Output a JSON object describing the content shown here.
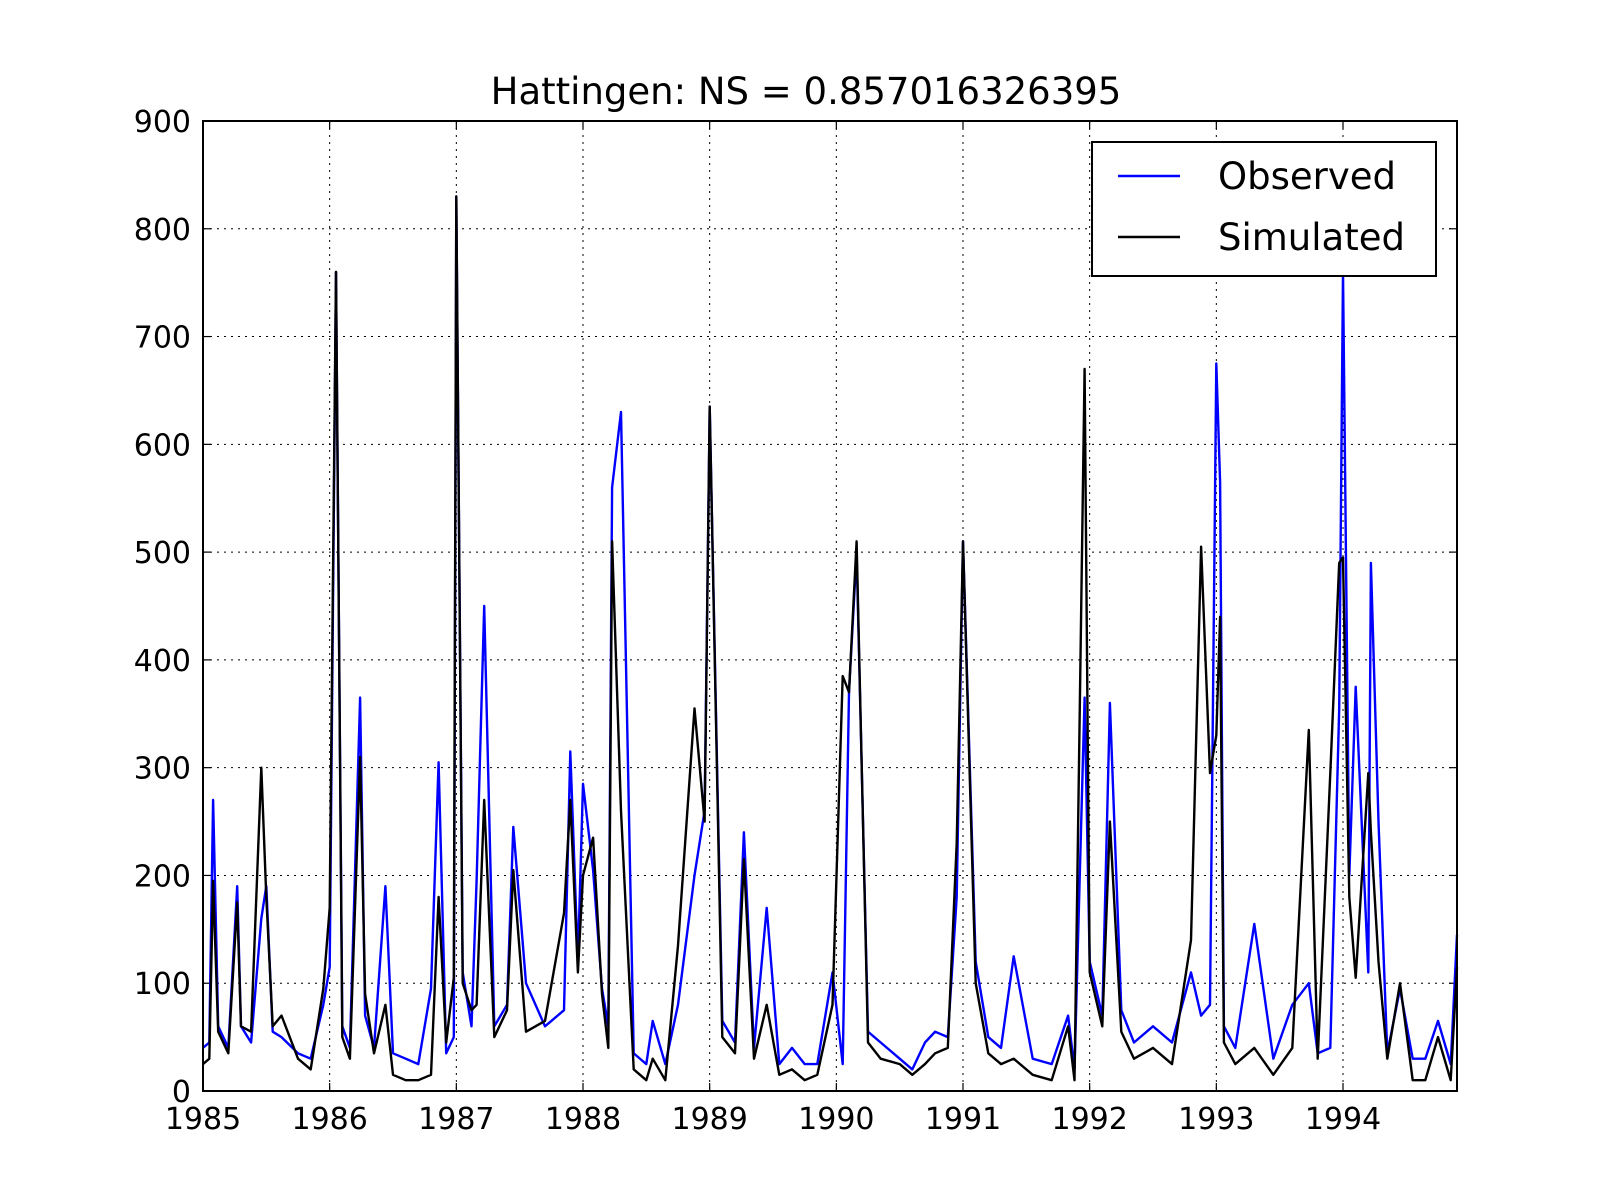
{
  "chart_data": {
    "type": "line",
    "title": "Hattingen: NS = 0.857016326395",
    "xlabel": "",
    "ylabel": "",
    "xlim": [
      1985.0,
      1994.9
    ],
    "ylim": [
      0,
      900
    ],
    "x_ticks": [
      "1985",
      "1986",
      "1987",
      "1988",
      "1989",
      "1990",
      "1991",
      "1992",
      "1993",
      "1994"
    ],
    "y_ticks": [
      "0",
      "100",
      "200",
      "300",
      "400",
      "500",
      "600",
      "700",
      "800",
      "900"
    ],
    "grid": true,
    "legend_position": "upper right",
    "series": [
      {
        "name": "Observed",
        "color": "#0000ff",
        "x": [
          1985.0,
          1985.05,
          1985.08,
          1985.12,
          1985.2,
          1985.27,
          1985.3,
          1985.38,
          1985.46,
          1985.5,
          1985.55,
          1985.62,
          1985.75,
          1985.85,
          1985.95,
          1986.0,
          1986.05,
          1986.1,
          1986.16,
          1986.24,
          1986.28,
          1986.35,
          1986.44,
          1986.5,
          1986.6,
          1986.7,
          1986.8,
          1986.86,
          1986.92,
          1986.98,
          1987.0,
          1987.05,
          1987.12,
          1987.16,
          1987.22,
          1987.3,
          1987.4,
          1987.45,
          1987.55,
          1987.7,
          1987.85,
          1987.9,
          1987.96,
          1988.0,
          1988.08,
          1988.15,
          1988.2,
          1988.23,
          1988.3,
          1988.4,
          1988.5,
          1988.55,
          1988.65,
          1988.75,
          1988.88,
          1988.96,
          1989.0,
          1989.1,
          1989.2,
          1989.27,
          1989.35,
          1989.45,
          1989.55,
          1989.65,
          1989.75,
          1989.85,
          1989.97,
          1990.05,
          1990.1,
          1990.16,
          1990.25,
          1990.35,
          1990.5,
          1990.6,
          1990.7,
          1990.78,
          1990.88,
          1990.95,
          1991.0,
          1991.1,
          1991.2,
          1991.3,
          1991.4,
          1991.55,
          1991.7,
          1991.83,
          1991.88,
          1991.96,
          1992.0,
          1992.1,
          1992.16,
          1992.25,
          1992.35,
          1992.5,
          1992.65,
          1992.8,
          1992.88,
          1992.95,
          1993.0,
          1993.03,
          1993.06,
          1993.15,
          1993.3,
          1993.45,
          1993.6,
          1993.73,
          1993.8,
          1993.9,
          1993.97,
          1994.0,
          1994.05,
          1994.1,
          1994.2,
          1994.22,
          1994.28,
          1994.35,
          1994.45,
          1994.55,
          1994.65,
          1994.75,
          1994.85,
          1994.9
        ],
        "values": [
          40,
          45,
          270,
          60,
          40,
          190,
          60,
          45,
          160,
          190,
          55,
          50,
          35,
          30,
          80,
          115,
          760,
          60,
          40,
          365,
          70,
          40,
          190,
          35,
          30,
          25,
          95,
          305,
          35,
          50,
          830,
          110,
          60,
          195,
          450,
          60,
          80,
          245,
          100,
          60,
          75,
          315,
          120,
          285,
          205,
          95,
          60,
          560,
          630,
          35,
          25,
          65,
          25,
          80,
          200,
          260,
          635,
          65,
          45,
          240,
          40,
          170,
          25,
          40,
          25,
          25,
          110,
          25,
          370,
          500,
          55,
          45,
          30,
          20,
          45,
          55,
          50,
          180,
          510,
          120,
          50,
          40,
          125,
          30,
          25,
          70,
          20,
          365,
          120,
          70,
          360,
          75,
          45,
          60,
          45,
          110,
          70,
          80,
          675,
          565,
          60,
          40,
          155,
          30,
          80,
          100,
          35,
          40,
          355,
          760,
          200,
          375,
          110,
          490,
          250,
          35,
          95,
          30,
          30,
          65,
          25,
          145
        ]
      },
      {
        "name": "Simulated",
        "color": "#000000",
        "x": [
          1985.0,
          1985.05,
          1985.08,
          1985.12,
          1985.2,
          1985.27,
          1985.3,
          1985.38,
          1985.46,
          1985.5,
          1985.55,
          1985.62,
          1985.75,
          1985.85,
          1985.95,
          1986.0,
          1986.05,
          1986.1,
          1986.16,
          1986.24,
          1986.28,
          1986.35,
          1986.44,
          1986.5,
          1986.6,
          1986.7,
          1986.8,
          1986.86,
          1986.92,
          1986.98,
          1987.0,
          1987.05,
          1987.12,
          1987.16,
          1987.22,
          1987.3,
          1987.4,
          1987.45,
          1987.55,
          1987.7,
          1987.85,
          1987.9,
          1987.96,
          1988.0,
          1988.08,
          1988.15,
          1988.2,
          1988.23,
          1988.3,
          1988.4,
          1988.5,
          1988.55,
          1988.65,
          1988.75,
          1988.88,
          1988.96,
          1989.0,
          1989.1,
          1989.2,
          1989.27,
          1989.35,
          1989.45,
          1989.55,
          1989.65,
          1989.75,
          1989.85,
          1989.97,
          1990.05,
          1990.1,
          1990.16,
          1990.25,
          1990.35,
          1990.5,
          1990.6,
          1990.7,
          1990.78,
          1990.88,
          1990.95,
          1991.0,
          1991.1,
          1991.2,
          1991.3,
          1991.4,
          1991.55,
          1991.7,
          1991.83,
          1991.88,
          1991.96,
          1992.0,
          1992.1,
          1992.16,
          1992.25,
          1992.35,
          1992.5,
          1992.65,
          1992.8,
          1992.88,
          1992.95,
          1993.0,
          1993.03,
          1993.06,
          1993.15,
          1993.3,
          1993.45,
          1993.6,
          1993.73,
          1993.8,
          1993.9,
          1993.97,
          1994.0,
          1994.05,
          1994.1,
          1994.2,
          1994.22,
          1994.28,
          1994.35,
          1994.45,
          1994.55,
          1994.65,
          1994.75,
          1994.85,
          1994.9
        ],
        "values": [
          25,
          30,
          195,
          55,
          35,
          175,
          60,
          55,
          300,
          180,
          60,
          70,
          30,
          20,
          95,
          170,
          760,
          50,
          30,
          310,
          90,
          35,
          80,
          15,
          10,
          10,
          15,
          180,
          45,
          105,
          830,
          100,
          75,
          80,
          270,
          50,
          75,
          205,
          55,
          65,
          165,
          270,
          110,
          200,
          235,
          90,
          40,
          510,
          260,
          20,
          10,
          30,
          10,
          135,
          355,
          250,
          635,
          50,
          35,
          215,
          30,
          80,
          15,
          20,
          10,
          15,
          80,
          385,
          370,
          510,
          45,
          30,
          25,
          15,
          25,
          35,
          40,
          230,
          510,
          100,
          35,
          25,
          30,
          15,
          10,
          60,
          10,
          670,
          110,
          60,
          250,
          55,
          30,
          40,
          25,
          140,
          505,
          295,
          330,
          440,
          45,
          25,
          40,
          15,
          40,
          335,
          30,
          295,
          490,
          495,
          180,
          105,
          295,
          240,
          120,
          30,
          100,
          10,
          10,
          50,
          10,
          115
        ]
      }
    ]
  }
}
